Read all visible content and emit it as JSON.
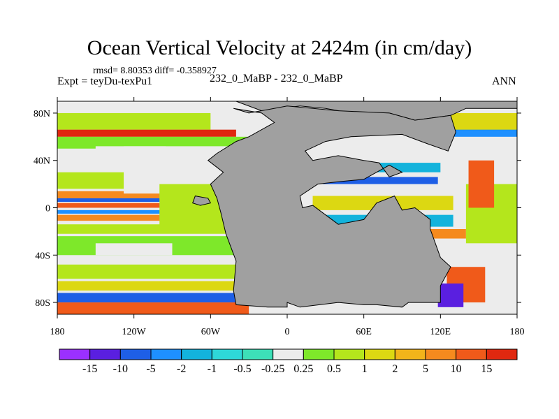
{
  "title": "Ocean Vertical Velocity at 2424m (in cm/day)",
  "stats": "rmsd= 8.80353  diff= -0.358927",
  "expt": "Expt = teyDu-texPu1",
  "subtitle": "232_0_MaBP - 232_0_MaBP",
  "season": "ANN",
  "chart_data": {
    "type": "heatmap",
    "title": "Ocean Vertical Velocity at 2424m (in cm/day)",
    "xlim": [
      -180,
      180
    ],
    "ylim": [
      -90,
      90
    ],
    "x_ticks": [
      {
        "value": -180,
        "label": "180"
      },
      {
        "value": -120,
        "label": "120W"
      },
      {
        "value": -60,
        "label": "60W"
      },
      {
        "value": 0,
        "label": "0"
      },
      {
        "value": 60,
        "label": "60E"
      },
      {
        "value": 120,
        "label": "120E"
      },
      {
        "value": 180,
        "label": "180"
      }
    ],
    "y_ticks": [
      {
        "value": 80,
        "label": "80N"
      },
      {
        "value": 40,
        "label": "40N"
      },
      {
        "value": 0,
        "label": "0"
      },
      {
        "value": -40,
        "label": "40S"
      },
      {
        "value": -80,
        "label": "80S"
      }
    ],
    "colorbar": {
      "labels": [
        "-15",
        "-10",
        "-5",
        "-2",
        "-1",
        "-0.5",
        "-0.25",
        "0.25",
        "0.5",
        "1",
        "2",
        "5",
        "10",
        "15"
      ],
      "colors": [
        "#9b30ff",
        "#5a1fe0",
        "#1e5fe6",
        "#1e90ff",
        "#13b3dc",
        "#2ed8d8",
        "#3de0b8",
        "#ececec",
        "#7ee82a",
        "#b4e61c",
        "#dcd812",
        "#f2b41a",
        "#f58a1e",
        "#f05a1a",
        "#e0280f"
      ]
    },
    "land_color": "#a0a0a0"
  }
}
